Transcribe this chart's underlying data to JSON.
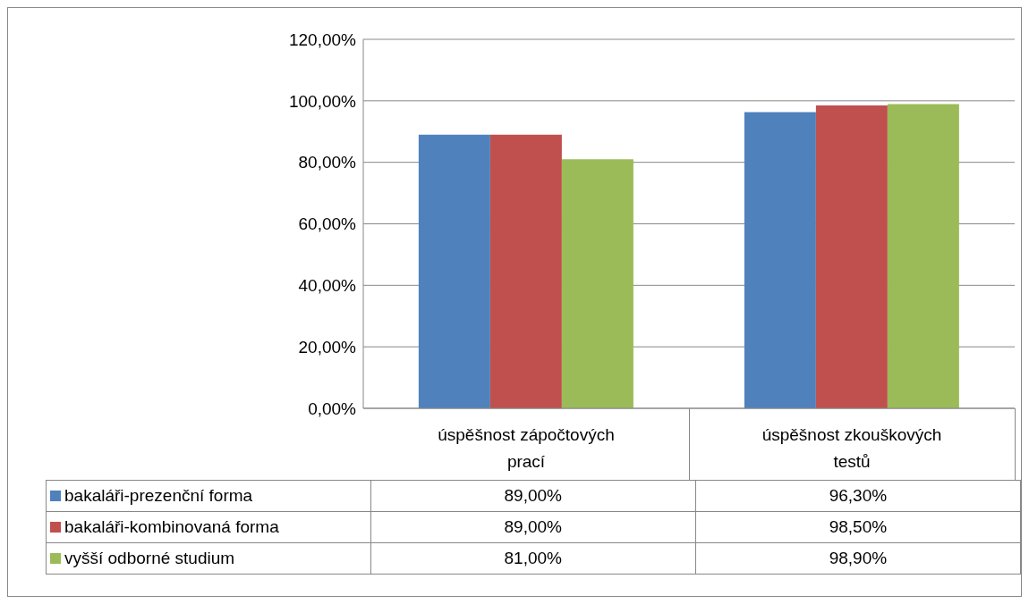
{
  "chart_data": {
    "type": "bar",
    "categories": [
      "úspěšnost zápočtových prací",
      "úspěšnost zkouškových testů"
    ],
    "series": [
      {
        "name": "bakaláři-prezenční forma",
        "color": "#4f81bd",
        "values": [
          89,
          96.3
        ],
        "value_labels": [
          "89,00%",
          "96,30%"
        ]
      },
      {
        "name": "bakaláři-kombinovaná forma",
        "color": "#c0504d",
        "values": [
          89,
          98.5
        ],
        "value_labels": [
          "89,00%",
          "98,50%"
        ]
      },
      {
        "name": "vyšší odborné studium",
        "color": "#9bbb59",
        "values": [
          81,
          98.9
        ],
        "value_labels": [
          "81,00%",
          "98,90%"
        ]
      }
    ],
    "ylim": [
      0,
      120
    ],
    "yticks": [
      {
        "value": 0,
        "label": "0,00%"
      },
      {
        "value": 20,
        "label": "20,00%"
      },
      {
        "value": 40,
        "label": "40,00%"
      },
      {
        "value": 60,
        "label": "60,00%"
      },
      {
        "value": 80,
        "label": "80,00%"
      },
      {
        "value": 100,
        "label": "100,00%"
      },
      {
        "value": 120,
        "label": "120,00%"
      }
    ],
    "grid": "y",
    "legend": "bottom"
  }
}
